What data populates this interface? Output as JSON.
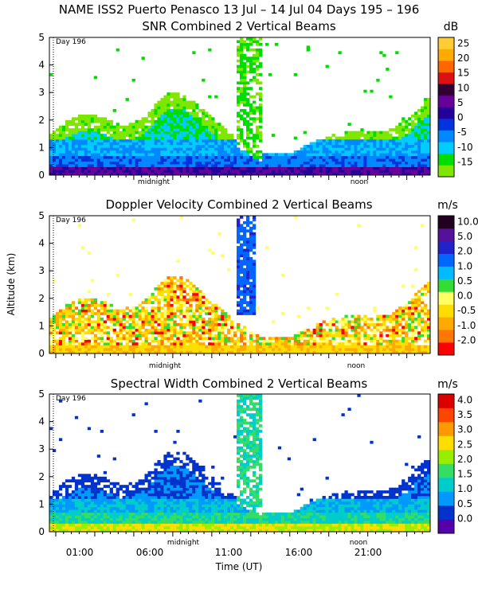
{
  "header": "NAME ISS2 Puerto Penasco  13 Jul – 14 Jul 04 Days 195 – 196",
  "xlabel": "Time (UT)",
  "ylabel": "Altitude (km)",
  "marker_labels": {
    "day": "Day 196",
    "midnight": "midnight",
    "noon": "noon"
  },
  "chart_data": [
    {
      "type": "heatmap",
      "title": "SNR Combined 2 Vertical Beams",
      "unit": "dB",
      "xlabel": "Time (UT)",
      "ylabel": "",
      "xlim": [
        23.0,
        24.0
      ],
      "ylim": [
        0,
        5
      ],
      "ytick_labels": [
        "0",
        "1",
        "2",
        "3",
        "4",
        "5"
      ],
      "colorbar": {
        "labels": [
          "-15",
          "-10",
          "-5",
          "0",
          "5",
          "10",
          "15",
          "20",
          "25"
        ],
        "values": [
          -15,
          -10,
          -5,
          0,
          5,
          10,
          15,
          20,
          25
        ],
        "colors": [
          "#7fe600",
          "#00dd00",
          "#00ccff",
          "#0088ff",
          "#0033dd",
          "#220099",
          "#660099",
          "#330033",
          "#dd1111",
          "#ff6600",
          "#ffaa00",
          "#ffcc33"
        ]
      },
      "field": "snr"
    },
    {
      "type": "heatmap",
      "title": "Doppler Velocity Combined 2 Vertical Beams",
      "unit": "m/s",
      "xlabel": "Time (UT)",
      "ylabel": "Altitude (km)",
      "xlim": [
        23.0,
        24.0
      ],
      "ylim": [
        0,
        5
      ],
      "ytick_labels": [
        "0",
        "1",
        "2",
        "3",
        "4",
        "5"
      ],
      "colorbar": {
        "labels": [
          "-2.0",
          "-1.0",
          "-0.5",
          "0.0",
          "0.5",
          "1.0",
          "2.0",
          "5.0",
          "10.0"
        ],
        "values": [
          -2.0,
          -1.0,
          -0.5,
          0.0,
          0.5,
          1.0,
          2.0,
          5.0,
          10.0
        ],
        "colors": [
          "#ff0000",
          "#ff7700",
          "#ffaa00",
          "#ffdd00",
          "#ffff66",
          "#33dd33",
          "#00bbff",
          "#0066ff",
          "#2222cc",
          "#551199",
          "#220022"
        ]
      },
      "field": "doppler"
    },
    {
      "type": "heatmap",
      "title": "Spectral Width Combined 2 Vertical Beams",
      "unit": "m/s",
      "xlabel": "Time (UT)",
      "ylabel": "",
      "xlim": [
        23.0,
        24.0
      ],
      "ylim": [
        0,
        5
      ],
      "ytick_labels": [
        "0",
        "1",
        "2",
        "3",
        "4",
        "5"
      ],
      "xtick_labels": [
        "01:00",
        "06:00",
        "11:00",
        "16:00",
        "21:00"
      ],
      "colorbar": {
        "labels": [
          "0.0",
          "0.5",
          "1.0",
          "1.5",
          "2.0",
          "2.5",
          "3.0",
          "3.5",
          "4.0"
        ],
        "values": [
          0.0,
          0.5,
          1.0,
          1.5,
          2.0,
          2.5,
          3.0,
          3.5,
          4.0
        ],
        "colors": [
          "#5500aa",
          "#0033cc",
          "#0099ff",
          "#00cccc",
          "#33dd66",
          "#99ee00",
          "#ffdd00",
          "#ff9900",
          "#ff4400",
          "#dd0000"
        ]
      },
      "field": "width"
    }
  ]
}
